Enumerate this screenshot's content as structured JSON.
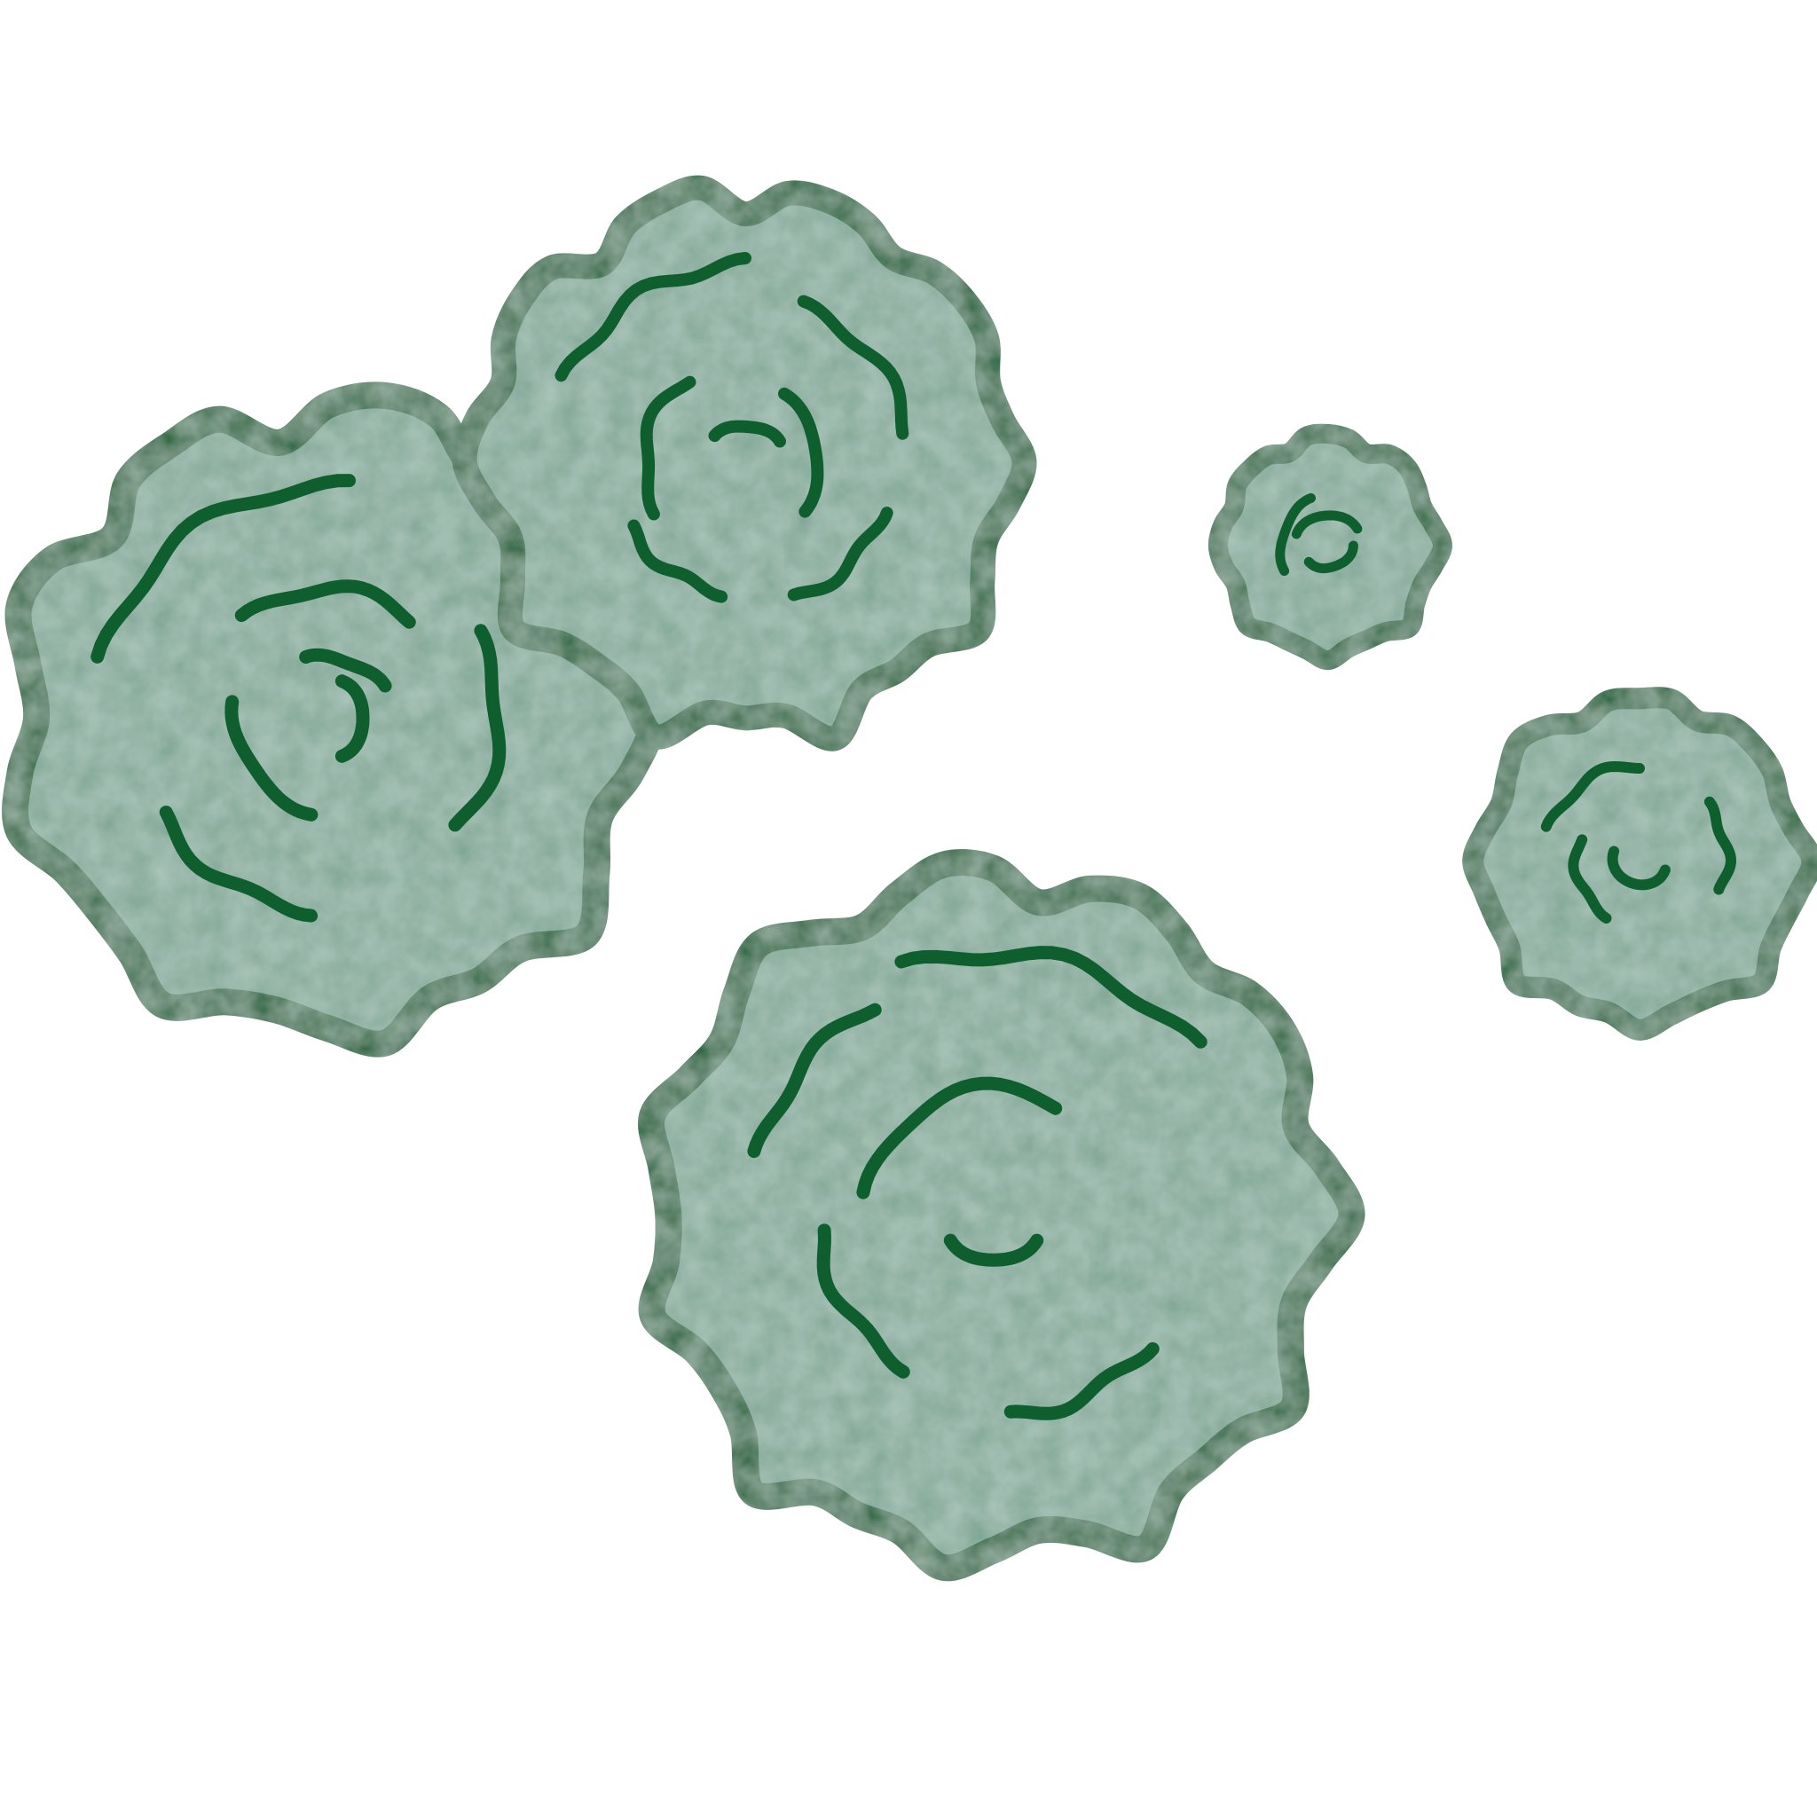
{
  "illustration": {
    "subject": "mold-spore-clusters",
    "colors": {
      "background": "#ffffff",
      "outline": "#0f5f2e",
      "fill": "#7fa594",
      "fill_light": "#93b5a5",
      "swirl": "#0f5f2e"
    },
    "cluster_count": 5
  }
}
